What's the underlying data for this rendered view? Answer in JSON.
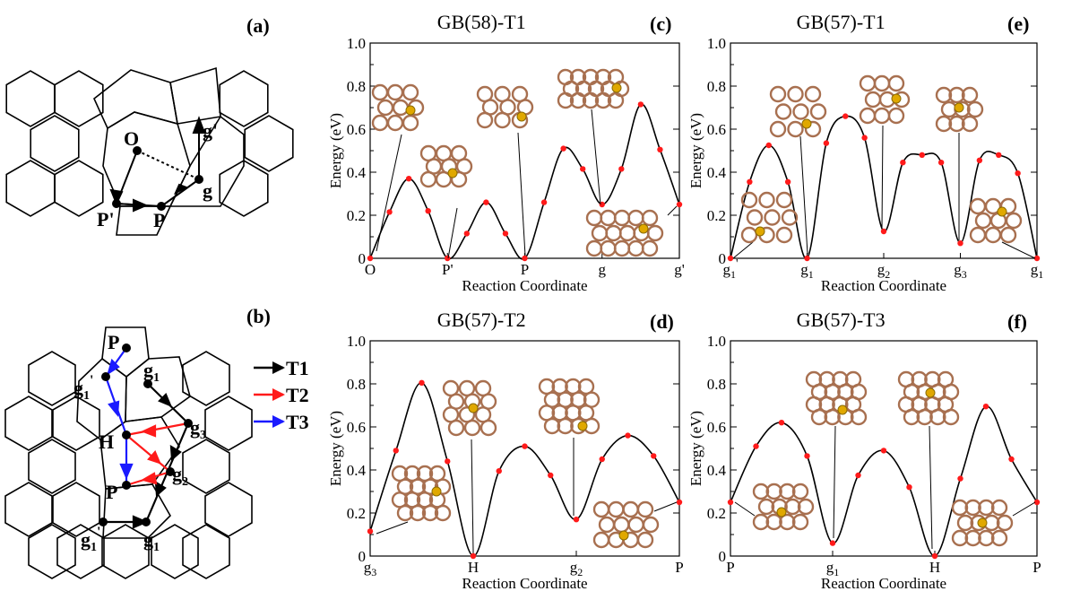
{
  "panels": {
    "a": {
      "label": "(a)",
      "points": [
        "O",
        "P'",
        "P",
        "g",
        "g'"
      ]
    },
    "b": {
      "label": "(b)",
      "points": [
        "P",
        "g",
        "1",
        "'",
        "g",
        "1",
        "g",
        "3",
        "H",
        "P",
        "g",
        "2",
        "g",
        "1",
        "'",
        "g",
        "1"
      ],
      "legend": [
        {
          "name": "T1",
          "color": "#000000"
        },
        {
          "name": "T2",
          "color": "#ff1a1a"
        },
        {
          "name": "T3",
          "color": "#1a1aff"
        }
      ]
    }
  },
  "chart_data": [
    {
      "id": "c",
      "panel_label": "(c)",
      "type": "line",
      "title": "GB(58)-T1",
      "xlabel": "Reaction Coordinate",
      "ylabel": "Energy (eV)",
      "xlim": [
        0,
        4
      ],
      "ylim": [
        0,
        1.0
      ],
      "yticks": [
        "0",
        "0.2",
        "0.4",
        "0.6",
        "0.8",
        "1.0"
      ],
      "xticks": [
        {
          "main": "O",
          "sub": "",
          "sup": ""
        },
        {
          "main": "P'",
          "sub": "",
          "sup": ""
        },
        {
          "main": "P",
          "sub": "",
          "sup": ""
        },
        {
          "main": "g",
          "sub": "",
          "sup": ""
        },
        {
          "main": "g'",
          "sub": "",
          "sup": ""
        }
      ],
      "points": [
        [
          0,
          0
        ],
        [
          0.25,
          0.215
        ],
        [
          0.5,
          0.37
        ],
        [
          0.75,
          0.22
        ],
        [
          1,
          0
        ],
        [
          1.25,
          0.115
        ],
        [
          1.5,
          0.26
        ],
        [
          1.75,
          0.115
        ],
        [
          2,
          0
        ],
        [
          2.25,
          0.26
        ],
        [
          2.5,
          0.51
        ],
        [
          2.75,
          0.415
        ],
        [
          3,
          0.25
        ],
        [
          3.25,
          0.415
        ],
        [
          3.5,
          0.715
        ],
        [
          3.75,
          0.505
        ],
        [
          4,
          0.25
        ]
      ]
    },
    {
      "id": "e",
      "panel_label": "(e)",
      "type": "line",
      "title": "GB(57)-T1",
      "xlabel": "Reaction Coordinate",
      "ylabel": "Energy (eV)",
      "xlim": [
        0,
        4
      ],
      "ylim": [
        0,
        1.0
      ],
      "yticks": [
        "0",
        "0.2",
        "0.4",
        "0.6",
        "0.8",
        "1.0"
      ],
      "xticks": [
        {
          "main": "g",
          "sub": "1",
          "sup": "'"
        },
        {
          "main": "g",
          "sub": "1",
          "sup": ""
        },
        {
          "main": "g",
          "sub": "2",
          "sup": ""
        },
        {
          "main": "g",
          "sub": "3",
          "sup": ""
        },
        {
          "main": "g",
          "sub": "1",
          "sup": ""
        }
      ],
      "points": [
        [
          0,
          0
        ],
        [
          0.25,
          0.355
        ],
        [
          0.5,
          0.525
        ],
        [
          0.75,
          0.355
        ],
        [
          1,
          0
        ],
        [
          1.25,
          0.535
        ],
        [
          1.5,
          0.66
        ],
        [
          1.75,
          0.56
        ],
        [
          2,
          0.125
        ],
        [
          2.25,
          0.445
        ],
        [
          2.5,
          0.48
        ],
        [
          2.75,
          0.445
        ],
        [
          3,
          0.07
        ],
        [
          3.25,
          0.455
        ],
        [
          3.5,
          0.48
        ],
        [
          3.75,
          0.395
        ],
        [
          4,
          0
        ]
      ]
    },
    {
      "id": "d",
      "panel_label": "(d)",
      "type": "line",
      "title": "GB(57)-T2",
      "xlabel": "Reaction Coordinate",
      "ylabel": "Energy (eV)",
      "xlim": [
        0,
        3
      ],
      "ylim": [
        0,
        1.0
      ],
      "yticks": [
        "0",
        "0.2",
        "0.4",
        "0.6",
        "0.8",
        "1.0"
      ],
      "xticks": [
        {
          "main": "g",
          "sub": "3",
          "sup": ""
        },
        {
          "main": "H",
          "sub": "",
          "sup": ""
        },
        {
          "main": "g",
          "sub": "2",
          "sup": ""
        },
        {
          "main": "P",
          "sub": "",
          "sup": ""
        }
      ],
      "points": [
        [
          0,
          0.115
        ],
        [
          0.25,
          0.49
        ],
        [
          0.5,
          0.805
        ],
        [
          0.75,
          0.44
        ],
        [
          1,
          0
        ],
        [
          1.25,
          0.395
        ],
        [
          1.5,
          0.51
        ],
        [
          1.75,
          0.375
        ],
        [
          2,
          0.17
        ],
        [
          2.25,
          0.45
        ],
        [
          2.5,
          0.56
        ],
        [
          2.75,
          0.465
        ],
        [
          3,
          0.25
        ]
      ]
    },
    {
      "id": "f",
      "panel_label": "(f)",
      "type": "line",
      "title": "GB(57)-T3",
      "xlabel": "Reaction Coordinate",
      "ylabel": "Energy (eV)",
      "xlim": [
        0,
        3
      ],
      "ylim": [
        0,
        1.0
      ],
      "yticks": [
        "0",
        "0.2",
        "0.4",
        "0.6",
        "0.8",
        "1.0"
      ],
      "xticks": [
        {
          "main": "P",
          "sub": "",
          "sup": ""
        },
        {
          "main": "g",
          "sub": "1",
          "sup": ""
        },
        {
          "main": "H",
          "sub": "",
          "sup": ""
        },
        {
          "main": "P",
          "sub": "",
          "sup": ""
        }
      ],
      "points": [
        [
          0,
          0.25
        ],
        [
          0.25,
          0.51
        ],
        [
          0.5,
          0.62
        ],
        [
          0.75,
          0.465
        ],
        [
          1,
          0.06
        ],
        [
          1.25,
          0.375
        ],
        [
          1.5,
          0.49
        ],
        [
          1.75,
          0.32
        ],
        [
          2,
          0
        ],
        [
          2.25,
          0.36
        ],
        [
          2.5,
          0.695
        ],
        [
          2.75,
          0.45
        ],
        [
          3,
          0.25
        ]
      ]
    }
  ],
  "colors": {
    "curve": "#000000",
    "marker": "#ff1a1a",
    "carbon": "#a87050",
    "dopant": "#e0a800"
  }
}
